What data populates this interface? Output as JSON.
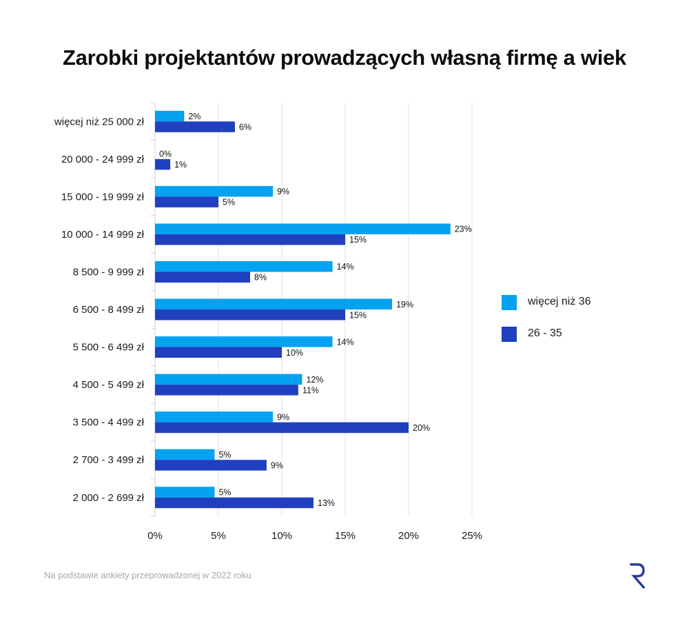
{
  "chart_data": {
    "type": "bar",
    "orientation": "horizontal",
    "title": "Zarobki projektantów prowadzących własną firmę a wiek",
    "categories": [
      "więcej niż 25 000 zł",
      "20 000 - 24 999 zł",
      "15 000 - 19 999 zł",
      "10 000 - 14 999 zł",
      "8 500 - 9 999 zł",
      "6 500 - 8 499 zł",
      "5 500 - 6 499 zł",
      "4 500 - 5 499 zł",
      "3 500 - 4 499 zł",
      "2 700 - 3 499 zł",
      "2 000 - 2 699 zł"
    ],
    "series": [
      {
        "name": "więcej niż 36",
        "color": "#04a2f0",
        "values": [
          2.3,
          0,
          9.3,
          23.3,
          14,
          18.7,
          14,
          11.6,
          9.3,
          4.7,
          4.7
        ],
        "labels": [
          "2%",
          "0%",
          "9%",
          "23%",
          "14%",
          "19%",
          "14%",
          "12%",
          "9%",
          "5%",
          "5%"
        ]
      },
      {
        "name": "26 - 35",
        "color": "#2040c0",
        "values": [
          6.3,
          1.2,
          5,
          15,
          7.5,
          15,
          10,
          11.3,
          20,
          8.8,
          12.5
        ],
        "labels": [
          "6%",
          "1%",
          "5%",
          "15%",
          "8%",
          "15%",
          "10%",
          "11%",
          "20%",
          "9%",
          "13%"
        ]
      }
    ],
    "xlim": [
      0,
      25
    ],
    "xticks": [
      0,
      5,
      10,
      15,
      20,
      25
    ],
    "xtick_labels": [
      "0%",
      "5%",
      "10%",
      "15%",
      "20%",
      "25%"
    ],
    "grid": true,
    "legend_position": "right"
  },
  "footnote": "Na podstawie ankiety przeprowadzonej w 2022 roku",
  "logo": {
    "icon": "r-logo-icon",
    "color": "#2b3a9e"
  }
}
